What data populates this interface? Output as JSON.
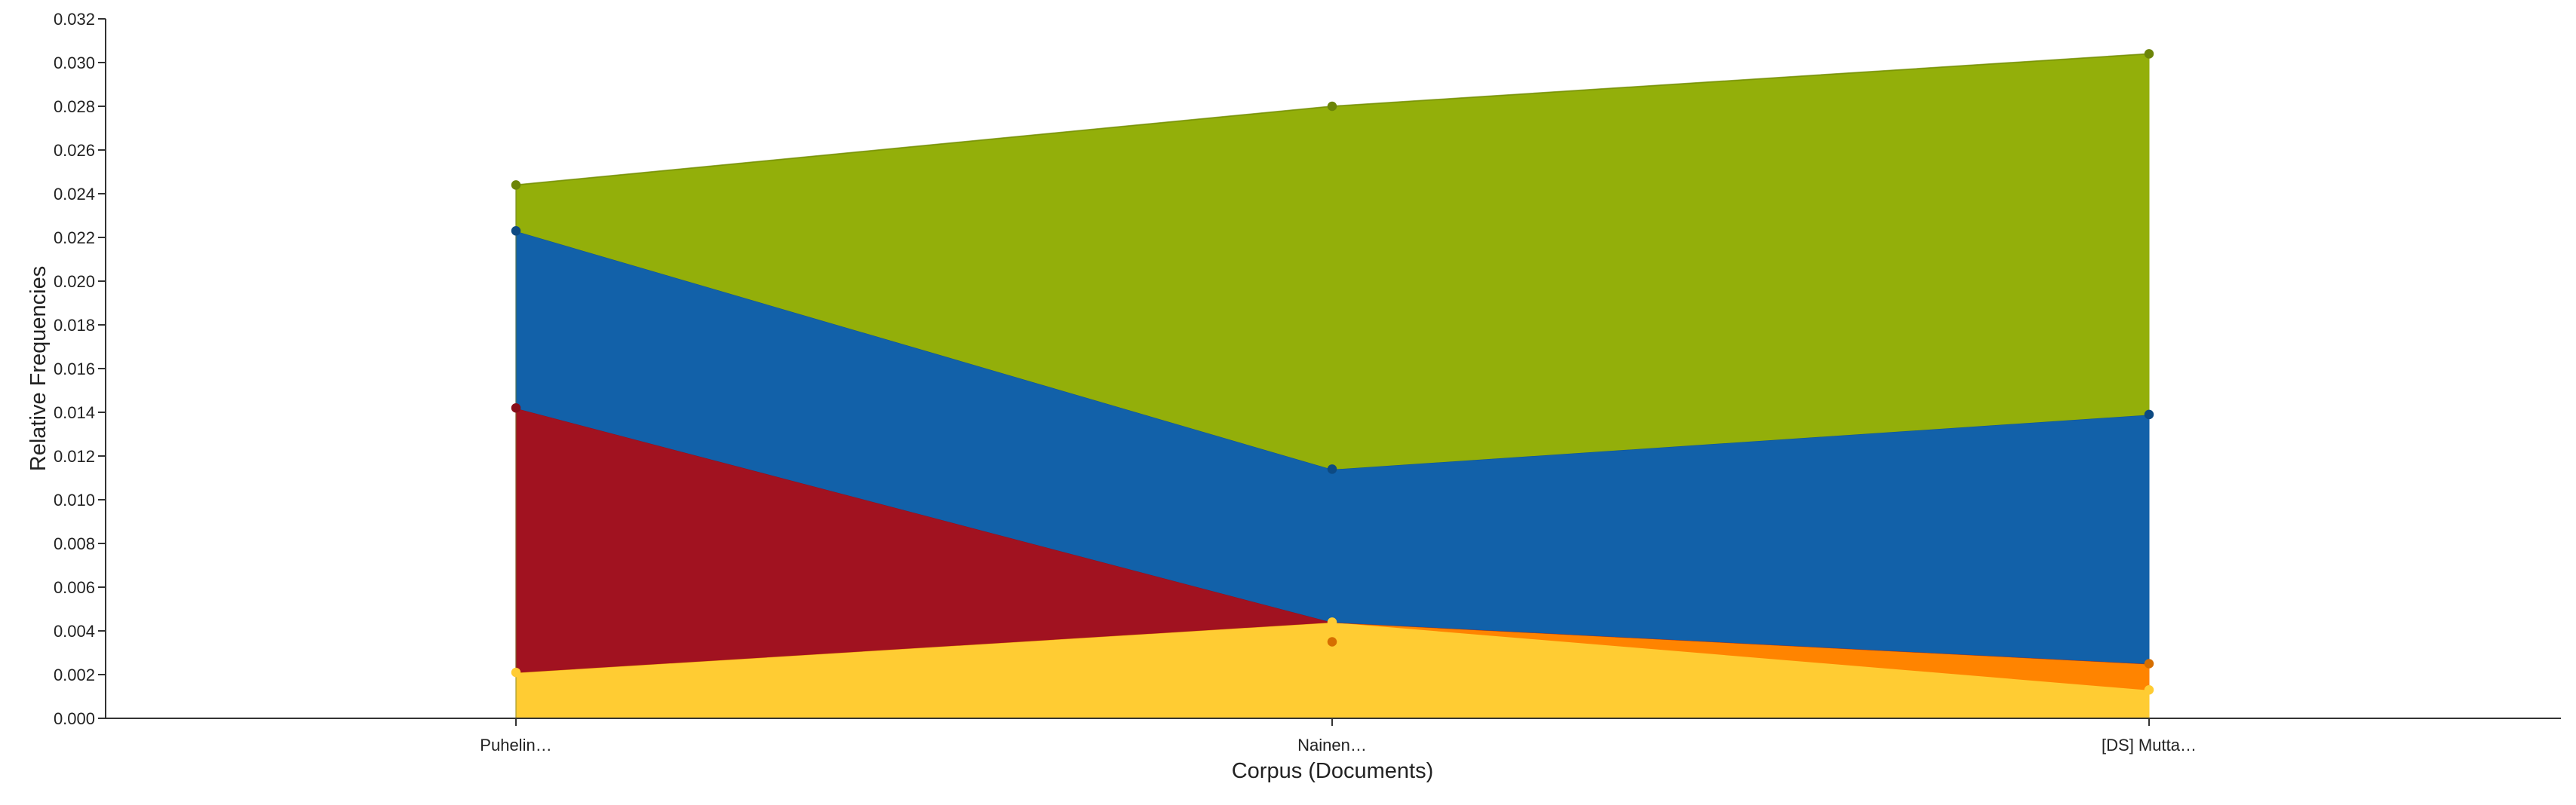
{
  "chart_data": {
    "type": "area",
    "stacked": true,
    "xlabel": "Corpus (Documents)",
    "ylabel": "Relative Frequencies",
    "categories": [
      "Puhelin…",
      "Nainen…",
      "[DS] Mutta…"
    ],
    "ylim": [
      0,
      0.032
    ],
    "yticks": [
      "0.000",
      "0.002",
      "0.004",
      "0.006",
      "0.008",
      "0.010",
      "0.012",
      "0.014",
      "0.016",
      "0.018",
      "0.020",
      "0.022",
      "0.024",
      "0.026",
      "0.028",
      "0.030",
      "0.032"
    ],
    "grid": false,
    "series": [
      {
        "values": [
          0.0021,
          0.0044,
          0.0013
        ],
        "color": "#ffcc33",
        "pointColor": "#ffcc33"
      },
      {
        "values": [
          0.0,
          0.0,
          0.0012
        ],
        "color": "#ff8400",
        "pointColor": "#d66e00",
        "extraPoint": {
          "index": 1,
          "value": 0.0035
        }
      },
      {
        "values": [
          0.0121,
          0.0,
          0.0
        ],
        "color": "#a11220",
        "pointColor": "#880e1a"
      },
      {
        "values": [
          0.0081,
          0.007,
          0.0114
        ],
        "color": "#1261a9",
        "pointColor": "#0d4a83"
      },
      {
        "values": [
          0.0021,
          0.0166,
          0.0165
        ],
        "color": "#93af0a",
        "pointColor": "#6c8508"
      }
    ]
  }
}
